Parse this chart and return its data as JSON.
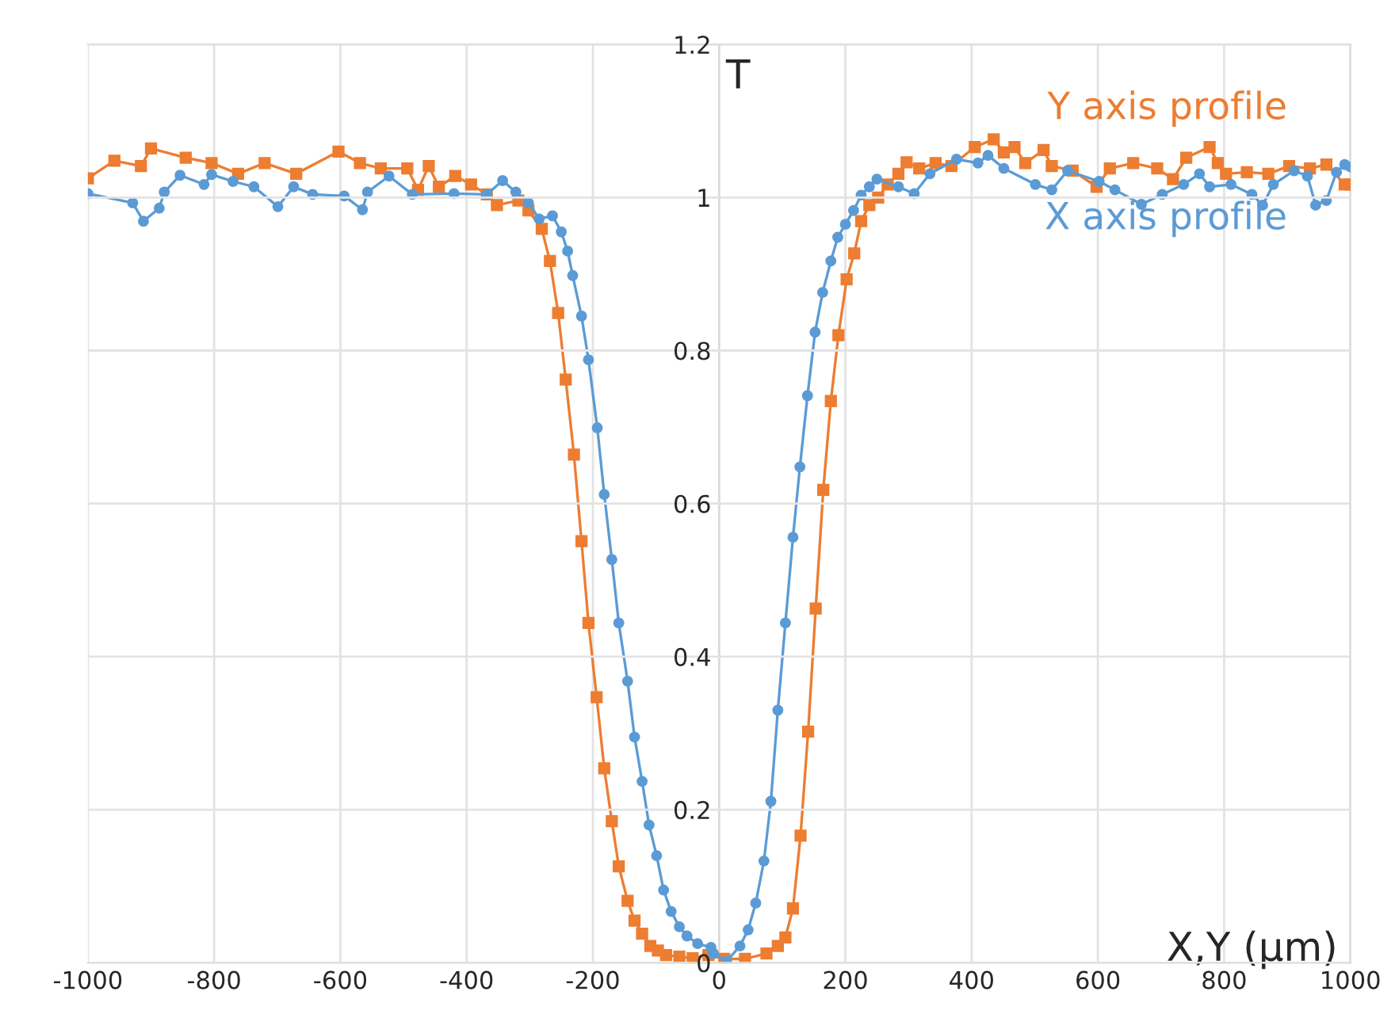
{
  "chart_data": {
    "type": "line",
    "ylabel": "T",
    "xlabel": "X,Y (μm)",
    "xlim": [
      -1000,
      1000
    ],
    "ylim": [
      0,
      1.2
    ],
    "xticks": [
      -1000,
      -800,
      -600,
      -400,
      -200,
      0,
      200,
      400,
      600,
      800,
      1000
    ],
    "yticks": [
      0,
      0.2,
      0.4,
      0.6,
      0.8,
      1,
      1.2
    ],
    "grid": true,
    "legend": false,
    "series": [
      {
        "name": "Y axis profile",
        "color": "#ed7d31",
        "marker": "square",
        "x": [
          -1000,
          -958,
          -916,
          -900,
          -845,
          -804,
          -762,
          -720,
          -670,
          -603,
          -569,
          -536,
          -494,
          -477,
          -460,
          -444,
          -418,
          -393,
          -368,
          -352,
          -318,
          -302,
          -281,
          -268,
          -255,
          -243,
          -230,
          -218,
          -207,
          -194,
          -182,
          -170,
          -159,
          -145,
          -134,
          -122,
          -109,
          -97,
          -84,
          -63,
          -42,
          -17,
          8,
          41,
          75,
          93,
          105,
          117,
          129,
          141,
          153,
          165,
          177,
          189,
          202,
          214,
          225,
          238,
          252,
          267,
          284,
          297,
          317,
          343,
          368,
          405,
          435,
          451,
          468,
          485,
          514,
          527,
          560,
          598,
          619,
          656,
          694,
          719,
          740,
          777,
          790,
          803,
          836,
          870,
          903,
          936,
          962,
          991,
          1000
        ],
        "values": [
          1.025,
          1.048,
          1.041,
          1.064,
          1.052,
          1.045,
          1.031,
          1.045,
          1.031,
          1.06,
          1.045,
          1.038,
          1.038,
          1.01,
          1.041,
          1.014,
          1.028,
          1.017,
          1.004,
          0.99,
          0.996,
          0.983,
          0.959,
          0.917,
          0.849,
          0.762,
          0.664,
          0.551,
          0.444,
          0.347,
          0.254,
          0.185,
          0.126,
          0.081,
          0.055,
          0.038,
          0.022,
          0.016,
          0.01,
          0.008,
          0.006,
          0.01,
          0.005,
          0.005,
          0.012,
          0.022,
          0.033,
          0.071,
          0.166,
          0.302,
          0.463,
          0.618,
          0.734,
          0.82,
          0.893,
          0.927,
          0.969,
          0.99,
          1.0,
          1.017,
          1.031,
          1.046,
          1.038,
          1.045,
          1.041,
          1.066,
          1.076,
          1.059,
          1.066,
          1.045,
          1.062,
          1.041,
          1.035,
          1.014,
          1.038,
          1.045,
          1.038,
          1.024,
          1.052,
          1.066,
          1.045,
          1.031,
          1.033,
          1.031,
          1.041,
          1.038,
          1.043,
          1.017,
          1.017
        ]
      },
      {
        "name": "X axis profile",
        "color": "#5b9bd5",
        "marker": "circle",
        "x": [
          -1000,
          -929,
          -912,
          -887,
          -879,
          -854,
          -816,
          -804,
          -770,
          -737,
          -699,
          -674,
          -644,
          -594,
          -565,
          -557,
          -523,
          -486,
          -420,
          -368,
          -343,
          -322,
          -302,
          -285,
          -264,
          -250,
          -240,
          -232,
          -218,
          -207,
          -193,
          -182,
          -170,
          -159,
          -145,
          -134,
          -122,
          -111,
          -99,
          -88,
          -76,
          -63,
          -51,
          -34,
          -13,
          -9,
          12,
          33,
          46,
          58,
          71,
          82,
          93,
          105,
          117,
          128,
          140,
          152,
          164,
          177,
          188,
          200,
          213,
          225,
          238,
          250,
          284,
          309,
          334,
          376,
          410,
          426,
          451,
          501,
          527,
          552,
          602,
          627,
          669,
          702,
          736,
          761,
          777,
          811,
          844,
          861,
          878,
          911,
          932,
          945,
          962,
          978,
          991,
          1000
        ],
        "values": [
          1.005,
          0.993,
          0.969,
          0.986,
          1.007,
          1.029,
          1.017,
          1.03,
          1.021,
          1.014,
          0.988,
          1.014,
          1.004,
          1.002,
          0.984,
          1.007,
          1.028,
          1.004,
          1.005,
          1.004,
          1.022,
          1.007,
          0.993,
          0.972,
          0.976,
          0.955,
          0.93,
          0.898,
          0.845,
          0.788,
          0.699,
          0.612,
          0.527,
          0.444,
          0.368,
          0.295,
          0.237,
          0.18,
          0.14,
          0.095,
          0.067,
          0.047,
          0.035,
          0.025,
          0.02,
          0.012,
          0.002,
          0.022,
          0.043,
          0.078,
          0.133,
          0.211,
          0.33,
          0.444,
          0.556,
          0.648,
          0.741,
          0.824,
          0.876,
          0.917,
          0.948,
          0.965,
          0.983,
          1.003,
          1.014,
          1.024,
          1.014,
          1.005,
          1.031,
          1.05,
          1.045,
          1.055,
          1.038,
          1.017,
          1.01,
          1.035,
          1.021,
          1.01,
          0.991,
          1.004,
          1.017,
          1.031,
          1.014,
          1.017,
          1.004,
          0.99,
          1.017,
          1.035,
          1.028,
          0.99,
          0.996,
          1.033,
          1.043,
          1.04
        ]
      }
    ]
  }
}
